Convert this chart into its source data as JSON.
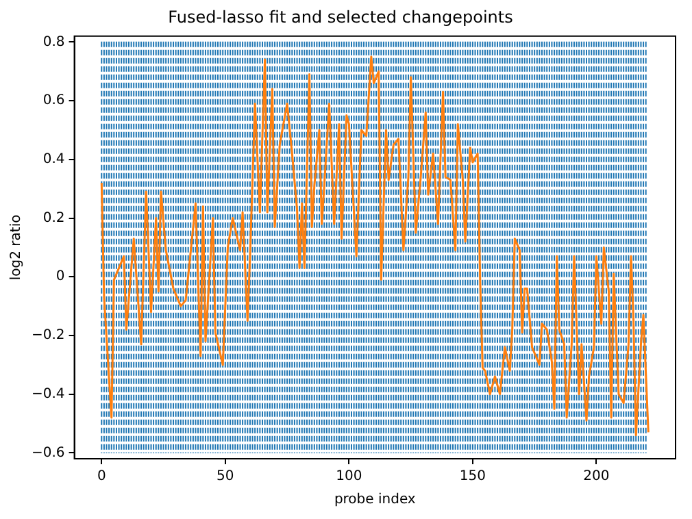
{
  "chart_data": {
    "type": "line",
    "title": "Fused-lasso fit and selected changepoints",
    "xlabel": "probe index",
    "ylabel": "log2 ratio",
    "xlim": [
      -11,
      232
    ],
    "xticks": [
      0,
      50,
      100,
      150,
      200
    ],
    "ylim": [
      -0.62,
      0.82
    ],
    "yticks": [
      -0.6,
      -0.4,
      -0.2,
      0.0,
      0.2,
      0.4,
      0.6,
      0.8
    ],
    "marker": "none",
    "line_style": "solid",
    "series": [
      {
        "color": "#ff7f0e",
        "x": [
          0,
          1,
          4,
          5,
          9,
          10,
          13,
          16,
          18,
          20,
          22,
          23,
          24,
          26,
          29,
          32,
          34,
          38,
          40,
          41,
          42,
          45,
          46,
          49,
          51,
          53,
          56,
          57,
          59,
          60,
          62,
          64,
          66,
          67,
          69,
          70,
          72,
          75,
          77,
          79,
          80,
          81,
          82,
          84,
          85,
          86,
          88,
          89,
          90,
          92,
          94,
          96,
          97,
          99,
          100,
          103,
          105,
          107,
          109,
          110,
          112,
          113,
          115,
          116,
          118,
          120,
          122,
          124,
          125,
          127,
          129,
          131,
          132,
          134,
          136,
          138,
          139,
          141,
          143,
          144,
          146,
          147,
          149,
          150,
          152,
          153,
          154,
          155,
          157,
          159,
          161,
          163,
          165,
          166,
          167,
          169,
          170,
          171,
          172,
          174,
          177,
          178,
          180,
          182,
          183,
          184,
          185,
          187,
          188,
          190,
          191,
          193,
          194,
          196,
          197,
          199,
          200,
          202,
          203,
          205,
          206,
          207,
          209,
          211,
          213,
          214,
          215,
          216,
          218,
          219,
          221
        ],
        "values": [
          0.32,
          -0.07,
          -0.48,
          -0.01,
          0.07,
          -0.18,
          0.13,
          -0.23,
          0.29,
          -0.12,
          0.2,
          -0.05,
          0.29,
          0.09,
          -0.04,
          -0.1,
          -0.08,
          0.25,
          -0.27,
          0.24,
          -0.22,
          0.2,
          -0.19,
          -0.3,
          0.1,
          0.2,
          0.09,
          0.22,
          -0.15,
          0.07,
          0.59,
          0.22,
          0.74,
          0.22,
          0.64,
          0.17,
          0.45,
          0.59,
          0.42,
          0.23,
          0.03,
          0.25,
          0.03,
          0.69,
          0.17,
          0.31,
          0.5,
          0.18,
          0.31,
          0.59,
          0.18,
          0.52,
          0.13,
          0.55,
          0.52,
          0.07,
          0.5,
          0.48,
          0.75,
          0.66,
          0.7,
          -0.01,
          0.5,
          0.33,
          0.45,
          0.47,
          0.09,
          0.34,
          0.68,
          0.15,
          0.34,
          0.56,
          0.28,
          0.42,
          0.18,
          0.63,
          0.34,
          0.33,
          0.09,
          0.52,
          0.33,
          0.12,
          0.44,
          0.39,
          0.42,
          -0.01,
          -0.31,
          -0.32,
          -0.4,
          -0.34,
          -0.4,
          -0.24,
          -0.32,
          -0.18,
          0.13,
          0.09,
          -0.19,
          -0.04,
          -0.04,
          -0.24,
          -0.3,
          -0.16,
          -0.18,
          -0.29,
          -0.45,
          0.07,
          -0.18,
          -0.23,
          -0.48,
          -0.23,
          0.07,
          -0.4,
          -0.23,
          -0.49,
          -0.34,
          -0.24,
          0.07,
          -0.16,
          0.1,
          -0.05,
          -0.48,
          0.01,
          -0.4,
          -0.43,
          -0.23,
          0.07,
          -0.15,
          -0.54,
          -0.23,
          -0.13,
          -0.53
        ]
      }
    ],
    "ref_lines": [
      {
        "axis": "x",
        "value": 0,
        "color": "#1f77b4",
        "line_style": "dashed"
      },
      {
        "axis": "x",
        "value": 1,
        "color": "#1f77b4",
        "line_style": "dashed"
      },
      {
        "axis": "x",
        "value": 2,
        "color": "#1f77b4",
        "line_style": "dashed"
      },
      {
        "axis": "x",
        "value": 3,
        "color": "#1f77b4",
        "line_style": "dashed"
      },
      {
        "axis": "x",
        "value": 4,
        "color": "#1f77b4",
        "line_style": "dashed"
      },
      {
        "axis": "x",
        "value": 5,
        "color": "#1f77b4",
        "line_style": "dashed"
      },
      {
        "axis": "x",
        "value": 6,
        "color": "#1f77b4",
        "line_style": "dashed"
      },
      {
        "axis": "x",
        "value": 7,
        "color": "#1f77b4",
        "line_style": "dashed"
      },
      {
        "axis": "x",
        "value": 8,
        "color": "#1f77b4",
        "line_style": "dashed"
      },
      {
        "axis": "x",
        "value": 9,
        "color": "#1f77b4",
        "line_style": "dashed"
      },
      {
        "axis": "x",
        "value": 10,
        "color": "#1f77b4",
        "line_style": "dashed"
      },
      {
        "axis": "x",
        "value": 11,
        "color": "#1f77b4",
        "line_style": "dashed"
      },
      {
        "axis": "x",
        "value": 12,
        "color": "#1f77b4",
        "line_style": "dashed"
      },
      {
        "axis": "x",
        "value": 13,
        "color": "#1f77b4",
        "line_style": "dashed"
      },
      {
        "axis": "x",
        "value": 14,
        "color": "#1f77b4",
        "line_style": "dashed"
      },
      {
        "axis": "x",
        "value": 15,
        "color": "#1f77b4",
        "line_style": "dashed"
      },
      {
        "axis": "x",
        "value": 16,
        "color": "#1f77b4",
        "line_style": "dashed"
      },
      {
        "axis": "x",
        "value": 17,
        "color": "#1f77b4",
        "line_style": "dashed"
      },
      {
        "axis": "x",
        "value": 18,
        "color": "#1f77b4",
        "line_style": "dashed"
      },
      {
        "axis": "x",
        "value": 19,
        "color": "#1f77b4",
        "line_style": "dashed"
      },
      {
        "axis": "x",
        "value": 20,
        "color": "#1f77b4",
        "line_style": "dashed"
      },
      {
        "axis": "x",
        "value": 21,
        "color": "#1f77b4",
        "line_style": "dashed"
      },
      {
        "axis": "x",
        "value": 22,
        "color": "#1f77b4",
        "line_style": "dashed"
      },
      {
        "axis": "x",
        "value": 23,
        "color": "#1f77b4",
        "line_style": "dashed"
      },
      {
        "axis": "x",
        "value": 24,
        "color": "#1f77b4",
        "line_style": "dashed"
      },
      {
        "axis": "x",
        "value": 25,
        "color": "#1f77b4",
        "line_style": "dashed"
      },
      {
        "axis": "x",
        "value": 26,
        "color": "#1f77b4",
        "line_style": "dashed"
      },
      {
        "axis": "x",
        "value": 27,
        "color": "#1f77b4",
        "line_style": "dashed"
      },
      {
        "axis": "x",
        "value": 28,
        "color": "#1f77b4",
        "line_style": "dashed"
      },
      {
        "axis": "x",
        "value": 29,
        "color": "#1f77b4",
        "line_style": "dashed"
      },
      {
        "axis": "x",
        "value": 30,
        "color": "#1f77b4",
        "line_style": "dashed"
      },
      {
        "axis": "x",
        "value": 31,
        "color": "#1f77b4",
        "line_style": "dashed"
      },
      {
        "axis": "x",
        "value": 32,
        "color": "#1f77b4",
        "line_style": "dashed"
      },
      {
        "axis": "x",
        "value": 33,
        "color": "#1f77b4",
        "line_style": "dashed"
      },
      {
        "axis": "x",
        "value": 34,
        "color": "#1f77b4",
        "line_style": "dashed"
      },
      {
        "axis": "x",
        "value": 35,
        "color": "#1f77b4",
        "line_style": "dashed"
      },
      {
        "axis": "x",
        "value": 36,
        "color": "#1f77b4",
        "line_style": "dashed"
      },
      {
        "axis": "x",
        "value": 37,
        "color": "#1f77b4",
        "line_style": "dashed"
      },
      {
        "axis": "x",
        "value": 38,
        "color": "#1f77b4",
        "line_style": "dashed"
      },
      {
        "axis": "x",
        "value": 39,
        "color": "#1f77b4",
        "line_style": "dashed"
      },
      {
        "axis": "x",
        "value": 40,
        "color": "#1f77b4",
        "line_style": "dashed"
      },
      {
        "axis": "x",
        "value": 41,
        "color": "#1f77b4",
        "line_style": "dashed"
      },
      {
        "axis": "x",
        "value": 42,
        "color": "#1f77b4",
        "line_style": "dashed"
      },
      {
        "axis": "x",
        "value": 43,
        "color": "#1f77b4",
        "line_style": "dashed"
      },
      {
        "axis": "x",
        "value": 44,
        "color": "#1f77b4",
        "line_style": "dashed"
      },
      {
        "axis": "x",
        "value": 45,
        "color": "#1f77b4",
        "line_style": "dashed"
      },
      {
        "axis": "x",
        "value": 46,
        "color": "#1f77b4",
        "line_style": "dashed"
      },
      {
        "axis": "x",
        "value": 47,
        "color": "#1f77b4",
        "line_style": "dashed"
      },
      {
        "axis": "x",
        "value": 48,
        "color": "#1f77b4",
        "line_style": "dashed"
      },
      {
        "axis": "x",
        "value": 49,
        "color": "#1f77b4",
        "line_style": "dashed"
      },
      {
        "axis": "x",
        "value": 50,
        "color": "#1f77b4",
        "line_style": "dashed"
      },
      {
        "axis": "x",
        "value": 51,
        "color": "#1f77b4",
        "line_style": "dashed"
      },
      {
        "axis": "x",
        "value": 52,
        "color": "#1f77b4",
        "line_style": "dashed"
      },
      {
        "axis": "x",
        "value": 53,
        "color": "#1f77b4",
        "line_style": "dashed"
      },
      {
        "axis": "x",
        "value": 54,
        "color": "#1f77b4",
        "line_style": "dashed"
      },
      {
        "axis": "x",
        "value": 55,
        "color": "#1f77b4",
        "line_style": "dashed"
      },
      {
        "axis": "x",
        "value": 56,
        "color": "#1f77b4",
        "line_style": "dashed"
      },
      {
        "axis": "x",
        "value": 57,
        "color": "#1f77b4",
        "line_style": "dashed"
      },
      {
        "axis": "x",
        "value": 58,
        "color": "#1f77b4",
        "line_style": "dashed"
      },
      {
        "axis": "x",
        "value": 59,
        "color": "#1f77b4",
        "line_style": "dashed"
      },
      {
        "axis": "x",
        "value": 60,
        "color": "#1f77b4",
        "line_style": "dashed"
      },
      {
        "axis": "x",
        "value": 61,
        "color": "#1f77b4",
        "line_style": "dashed"
      },
      {
        "axis": "x",
        "value": 62,
        "color": "#1f77b4",
        "line_style": "dashed"
      },
      {
        "axis": "x",
        "value": 63,
        "color": "#1f77b4",
        "line_style": "dashed"
      },
      {
        "axis": "x",
        "value": 64,
        "color": "#1f77b4",
        "line_style": "dashed"
      },
      {
        "axis": "x",
        "value": 65,
        "color": "#1f77b4",
        "line_style": "dashed"
      },
      {
        "axis": "x",
        "value": 66,
        "color": "#1f77b4",
        "line_style": "dashed"
      },
      {
        "axis": "x",
        "value": 67,
        "color": "#1f77b4",
        "line_style": "dashed"
      },
      {
        "axis": "x",
        "value": 68,
        "color": "#1f77b4",
        "line_style": "dashed"
      },
      {
        "axis": "x",
        "value": 69,
        "color": "#1f77b4",
        "line_style": "dashed"
      },
      {
        "axis": "x",
        "value": 70,
        "color": "#1f77b4",
        "line_style": "dashed"
      },
      {
        "axis": "x",
        "value": 71,
        "color": "#1f77b4",
        "line_style": "dashed"
      },
      {
        "axis": "x",
        "value": 72,
        "color": "#1f77b4",
        "line_style": "dashed"
      },
      {
        "axis": "x",
        "value": 73,
        "color": "#1f77b4",
        "line_style": "dashed"
      },
      {
        "axis": "x",
        "value": 74,
        "color": "#1f77b4",
        "line_style": "dashed"
      },
      {
        "axis": "x",
        "value": 75,
        "color": "#1f77b4",
        "line_style": "dashed"
      },
      {
        "axis": "x",
        "value": 76,
        "color": "#1f77b4",
        "line_style": "dashed"
      },
      {
        "axis": "x",
        "value": 77,
        "color": "#1f77b4",
        "line_style": "dashed"
      },
      {
        "axis": "x",
        "value": 78,
        "color": "#1f77b4",
        "line_style": "dashed"
      },
      {
        "axis": "x",
        "value": 79,
        "color": "#1f77b4",
        "line_style": "dashed"
      },
      {
        "axis": "x",
        "value": 80,
        "color": "#1f77b4",
        "line_style": "dashed"
      },
      {
        "axis": "x",
        "value": 81,
        "color": "#1f77b4",
        "line_style": "dashed"
      },
      {
        "axis": "x",
        "value": 82,
        "color": "#1f77b4",
        "line_style": "dashed"
      },
      {
        "axis": "x",
        "value": 83,
        "color": "#1f77b4",
        "line_style": "dashed"
      },
      {
        "axis": "x",
        "value": 84,
        "color": "#1f77b4",
        "line_style": "dashed"
      },
      {
        "axis": "x",
        "value": 85,
        "color": "#1f77b4",
        "line_style": "dashed"
      },
      {
        "axis": "x",
        "value": 86,
        "color": "#1f77b4",
        "line_style": "dashed"
      },
      {
        "axis": "x",
        "value": 87,
        "color": "#1f77b4",
        "line_style": "dashed"
      },
      {
        "axis": "x",
        "value": 88,
        "color": "#1f77b4",
        "line_style": "dashed"
      },
      {
        "axis": "x",
        "value": 89,
        "color": "#1f77b4",
        "line_style": "dashed"
      },
      {
        "axis": "x",
        "value": 90,
        "color": "#1f77b4",
        "line_style": "dashed"
      },
      {
        "axis": "x",
        "value": 91,
        "color": "#1f77b4",
        "line_style": "dashed"
      },
      {
        "axis": "x",
        "value": 92,
        "color": "#1f77b4",
        "line_style": "dashed"
      },
      {
        "axis": "x",
        "value": 93,
        "color": "#1f77b4",
        "line_style": "dashed"
      },
      {
        "axis": "x",
        "value": 94,
        "color": "#1f77b4",
        "line_style": "dashed"
      },
      {
        "axis": "x",
        "value": 95,
        "color": "#1f77b4",
        "line_style": "dashed"
      },
      {
        "axis": "x",
        "value": 96,
        "color": "#1f77b4",
        "line_style": "dashed"
      },
      {
        "axis": "x",
        "value": 97,
        "color": "#1f77b4",
        "line_style": "dashed"
      },
      {
        "axis": "x",
        "value": 98,
        "color": "#1f77b4",
        "line_style": "dashed"
      },
      {
        "axis": "x",
        "value": 99,
        "color": "#1f77b4",
        "line_style": "dashed"
      },
      {
        "axis": "x",
        "value": 100,
        "color": "#1f77b4",
        "line_style": "dashed"
      },
      {
        "axis": "x",
        "value": 101,
        "color": "#1f77b4",
        "line_style": "dashed"
      },
      {
        "axis": "x",
        "value": 102,
        "color": "#1f77b4",
        "line_style": "dashed"
      },
      {
        "axis": "x",
        "value": 103,
        "color": "#1f77b4",
        "line_style": "dashed"
      },
      {
        "axis": "x",
        "value": 104,
        "color": "#1f77b4",
        "line_style": "dashed"
      },
      {
        "axis": "x",
        "value": 105,
        "color": "#1f77b4",
        "line_style": "dashed"
      },
      {
        "axis": "x",
        "value": 106,
        "color": "#1f77b4",
        "line_style": "dashed"
      },
      {
        "axis": "x",
        "value": 107,
        "color": "#1f77b4",
        "line_style": "dashed"
      },
      {
        "axis": "x",
        "value": 108,
        "color": "#1f77b4",
        "line_style": "dashed"
      },
      {
        "axis": "x",
        "value": 109,
        "color": "#1f77b4",
        "line_style": "dashed"
      },
      {
        "axis": "x",
        "value": 110,
        "color": "#1f77b4",
        "line_style": "dashed"
      },
      {
        "axis": "x",
        "value": 111,
        "color": "#1f77b4",
        "line_style": "dashed"
      },
      {
        "axis": "x",
        "value": 112,
        "color": "#1f77b4",
        "line_style": "dashed"
      },
      {
        "axis": "x",
        "value": 113,
        "color": "#1f77b4",
        "line_style": "dashed"
      },
      {
        "axis": "x",
        "value": 114,
        "color": "#1f77b4",
        "line_style": "dashed"
      },
      {
        "axis": "x",
        "value": 115,
        "color": "#1f77b4",
        "line_style": "dashed"
      },
      {
        "axis": "x",
        "value": 116,
        "color": "#1f77b4",
        "line_style": "dashed"
      },
      {
        "axis": "x",
        "value": 117,
        "color": "#1f77b4",
        "line_style": "dashed"
      },
      {
        "axis": "x",
        "value": 118,
        "color": "#1f77b4",
        "line_style": "dashed"
      },
      {
        "axis": "x",
        "value": 119,
        "color": "#1f77b4",
        "line_style": "dashed"
      },
      {
        "axis": "x",
        "value": 120,
        "color": "#1f77b4",
        "line_style": "dashed"
      },
      {
        "axis": "x",
        "value": 121,
        "color": "#1f77b4",
        "line_style": "dashed"
      },
      {
        "axis": "x",
        "value": 122,
        "color": "#1f77b4",
        "line_style": "dashed"
      },
      {
        "axis": "x",
        "value": 123,
        "color": "#1f77b4",
        "line_style": "dashed"
      },
      {
        "axis": "x",
        "value": 124,
        "color": "#1f77b4",
        "line_style": "dashed"
      },
      {
        "axis": "x",
        "value": 125,
        "color": "#1f77b4",
        "line_style": "dashed"
      },
      {
        "axis": "x",
        "value": 126,
        "color": "#1f77b4",
        "line_style": "dashed"
      },
      {
        "axis": "x",
        "value": 127,
        "color": "#1f77b4",
        "line_style": "dashed"
      },
      {
        "axis": "x",
        "value": 128,
        "color": "#1f77b4",
        "line_style": "dashed"
      },
      {
        "axis": "x",
        "value": 129,
        "color": "#1f77b4",
        "line_style": "dashed"
      },
      {
        "axis": "x",
        "value": 130,
        "color": "#1f77b4",
        "line_style": "dashed"
      },
      {
        "axis": "x",
        "value": 131,
        "color": "#1f77b4",
        "line_style": "dashed"
      },
      {
        "axis": "x",
        "value": 132,
        "color": "#1f77b4",
        "line_style": "dashed"
      },
      {
        "axis": "x",
        "value": 133,
        "color": "#1f77b4",
        "line_style": "dashed"
      },
      {
        "axis": "x",
        "value": 134,
        "color": "#1f77b4",
        "line_style": "dashed"
      },
      {
        "axis": "x",
        "value": 135,
        "color": "#1f77b4",
        "line_style": "dashed"
      },
      {
        "axis": "x",
        "value": 136,
        "color": "#1f77b4",
        "line_style": "dashed"
      },
      {
        "axis": "x",
        "value": 137,
        "color": "#1f77b4",
        "line_style": "dashed"
      },
      {
        "axis": "x",
        "value": 138,
        "color": "#1f77b4",
        "line_style": "dashed"
      },
      {
        "axis": "x",
        "value": 139,
        "color": "#1f77b4",
        "line_style": "dashed"
      },
      {
        "axis": "x",
        "value": 140,
        "color": "#1f77b4",
        "line_style": "dashed"
      },
      {
        "axis": "x",
        "value": 141,
        "color": "#1f77b4",
        "line_style": "dashed"
      },
      {
        "axis": "x",
        "value": 142,
        "color": "#1f77b4",
        "line_style": "dashed"
      },
      {
        "axis": "x",
        "value": 143,
        "color": "#1f77b4",
        "line_style": "dashed"
      },
      {
        "axis": "x",
        "value": 144,
        "color": "#1f77b4",
        "line_style": "dashed"
      },
      {
        "axis": "x",
        "value": 145,
        "color": "#1f77b4",
        "line_style": "dashed"
      },
      {
        "axis": "x",
        "value": 146,
        "color": "#1f77b4",
        "line_style": "dashed"
      },
      {
        "axis": "x",
        "value": 147,
        "color": "#1f77b4",
        "line_style": "dashed"
      },
      {
        "axis": "x",
        "value": 148,
        "color": "#1f77b4",
        "line_style": "dashed"
      },
      {
        "axis": "x",
        "value": 149,
        "color": "#1f77b4",
        "line_style": "dashed"
      },
      {
        "axis": "x",
        "value": 150,
        "color": "#1f77b4",
        "line_style": "dashed"
      },
      {
        "axis": "x",
        "value": 151,
        "color": "#1f77b4",
        "line_style": "dashed"
      },
      {
        "axis": "x",
        "value": 152,
        "color": "#1f77b4",
        "line_style": "dashed"
      },
      {
        "axis": "x",
        "value": 153,
        "color": "#1f77b4",
        "line_style": "dashed"
      },
      {
        "axis": "x",
        "value": 154,
        "color": "#1f77b4",
        "line_style": "dashed"
      },
      {
        "axis": "x",
        "value": 155,
        "color": "#1f77b4",
        "line_style": "dashed"
      },
      {
        "axis": "x",
        "value": 156,
        "color": "#1f77b4",
        "line_style": "dashed"
      },
      {
        "axis": "x",
        "value": 157,
        "color": "#1f77b4",
        "line_style": "dashed"
      },
      {
        "axis": "x",
        "value": 158,
        "color": "#1f77b4",
        "line_style": "dashed"
      },
      {
        "axis": "x",
        "value": 159,
        "color": "#1f77b4",
        "line_style": "dashed"
      },
      {
        "axis": "x",
        "value": 160,
        "color": "#1f77b4",
        "line_style": "dashed"
      },
      {
        "axis": "x",
        "value": 161,
        "color": "#1f77b4",
        "line_style": "dashed"
      },
      {
        "axis": "x",
        "value": 162,
        "color": "#1f77b4",
        "line_style": "dashed"
      },
      {
        "axis": "x",
        "value": 163,
        "color": "#1f77b4",
        "line_style": "dashed"
      },
      {
        "axis": "x",
        "value": 164,
        "color": "#1f77b4",
        "line_style": "dashed"
      },
      {
        "axis": "x",
        "value": 165,
        "color": "#1f77b4",
        "line_style": "dashed"
      },
      {
        "axis": "x",
        "value": 166,
        "color": "#1f77b4",
        "line_style": "dashed"
      },
      {
        "axis": "x",
        "value": 167,
        "color": "#1f77b4",
        "line_style": "dashed"
      },
      {
        "axis": "x",
        "value": 168,
        "color": "#1f77b4",
        "line_style": "dashed"
      },
      {
        "axis": "x",
        "value": 169,
        "color": "#1f77b4",
        "line_style": "dashed"
      },
      {
        "axis": "x",
        "value": 170,
        "color": "#1f77b4",
        "line_style": "dashed"
      },
      {
        "axis": "x",
        "value": 171,
        "color": "#1f77b4",
        "line_style": "dashed"
      },
      {
        "axis": "x",
        "value": 172,
        "color": "#1f77b4",
        "line_style": "dashed"
      },
      {
        "axis": "x",
        "value": 173,
        "color": "#1f77b4",
        "line_style": "dashed"
      },
      {
        "axis": "x",
        "value": 174,
        "color": "#1f77b4",
        "line_style": "dashed"
      },
      {
        "axis": "x",
        "value": 175,
        "color": "#1f77b4",
        "line_style": "dashed"
      },
      {
        "axis": "x",
        "value": 176,
        "color": "#1f77b4",
        "line_style": "dashed"
      },
      {
        "axis": "x",
        "value": 177,
        "color": "#1f77b4",
        "line_style": "dashed"
      },
      {
        "axis": "x",
        "value": 178,
        "color": "#1f77b4",
        "line_style": "dashed"
      },
      {
        "axis": "x",
        "value": 179,
        "color": "#1f77b4",
        "line_style": "dashed"
      },
      {
        "axis": "x",
        "value": 180,
        "color": "#1f77b4",
        "line_style": "dashed"
      },
      {
        "axis": "x",
        "value": 181,
        "color": "#1f77b4",
        "line_style": "dashed"
      },
      {
        "axis": "x",
        "value": 182,
        "color": "#1f77b4",
        "line_style": "dashed"
      },
      {
        "axis": "x",
        "value": 183,
        "color": "#1f77b4",
        "line_style": "dashed"
      },
      {
        "axis": "x",
        "value": 184,
        "color": "#1f77b4",
        "line_style": "dashed"
      },
      {
        "axis": "x",
        "value": 185,
        "color": "#1f77b4",
        "line_style": "dashed"
      },
      {
        "axis": "x",
        "value": 186,
        "color": "#1f77b4",
        "line_style": "dashed"
      },
      {
        "axis": "x",
        "value": 187,
        "color": "#1f77b4",
        "line_style": "dashed"
      },
      {
        "axis": "x",
        "value": 188,
        "color": "#1f77b4",
        "line_style": "dashed"
      },
      {
        "axis": "x",
        "value": 189,
        "color": "#1f77b4",
        "line_style": "dashed"
      },
      {
        "axis": "x",
        "value": 190,
        "color": "#1f77b4",
        "line_style": "dashed"
      },
      {
        "axis": "x",
        "value": 191,
        "color": "#1f77b4",
        "line_style": "dashed"
      },
      {
        "axis": "x",
        "value": 192,
        "color": "#1f77b4",
        "line_style": "dashed"
      },
      {
        "axis": "x",
        "value": 193,
        "color": "#1f77b4",
        "line_style": "dashed"
      },
      {
        "axis": "x",
        "value": 194,
        "color": "#1f77b4",
        "line_style": "dashed"
      },
      {
        "axis": "x",
        "value": 195,
        "color": "#1f77b4",
        "line_style": "dashed"
      },
      {
        "axis": "x",
        "value": 196,
        "color": "#1f77b4",
        "line_style": "dashed"
      },
      {
        "axis": "x",
        "value": 197,
        "color": "#1f77b4",
        "line_style": "dashed"
      },
      {
        "axis": "x",
        "value": 198,
        "color": "#1f77b4",
        "line_style": "dashed"
      },
      {
        "axis": "x",
        "value": 199,
        "color": "#1f77b4",
        "line_style": "dashed"
      },
      {
        "axis": "x",
        "value": 200,
        "color": "#1f77b4",
        "line_style": "dashed"
      },
      {
        "axis": "x",
        "value": 201,
        "color": "#1f77b4",
        "line_style": "dashed"
      },
      {
        "axis": "x",
        "value": 202,
        "color": "#1f77b4",
        "line_style": "dashed"
      },
      {
        "axis": "x",
        "value": 203,
        "color": "#1f77b4",
        "line_style": "dashed"
      },
      {
        "axis": "x",
        "value": 204,
        "color": "#1f77b4",
        "line_style": "dashed"
      },
      {
        "axis": "x",
        "value": 205,
        "color": "#1f77b4",
        "line_style": "dashed"
      },
      {
        "axis": "x",
        "value": 206,
        "color": "#1f77b4",
        "line_style": "dashed"
      },
      {
        "axis": "x",
        "value": 207,
        "color": "#1f77b4",
        "line_style": "dashed"
      },
      {
        "axis": "x",
        "value": 208,
        "color": "#1f77b4",
        "line_style": "dashed"
      },
      {
        "axis": "x",
        "value": 209,
        "color": "#1f77b4",
        "line_style": "dashed"
      },
      {
        "axis": "x",
        "value": 210,
        "color": "#1f77b4",
        "line_style": "dashed"
      },
      {
        "axis": "x",
        "value": 211,
        "color": "#1f77b4",
        "line_style": "dashed"
      },
      {
        "axis": "x",
        "value": 212,
        "color": "#1f77b4",
        "line_style": "dashed"
      },
      {
        "axis": "x",
        "value": 213,
        "color": "#1f77b4",
        "line_style": "dashed"
      },
      {
        "axis": "x",
        "value": 214,
        "color": "#1f77b4",
        "line_style": "dashed"
      },
      {
        "axis": "x",
        "value": 215,
        "color": "#1f77b4",
        "line_style": "dashed"
      },
      {
        "axis": "x",
        "value": 216,
        "color": "#1f77b4",
        "line_style": "dashed"
      },
      {
        "axis": "x",
        "value": 217,
        "color": "#1f77b4",
        "line_style": "dashed"
      },
      {
        "axis": "x",
        "value": 218,
        "color": "#1f77b4",
        "line_style": "dashed"
      },
      {
        "axis": "x",
        "value": 219,
        "color": "#1f77b4",
        "line_style": "dashed"
      },
      {
        "axis": "x",
        "value": 220,
        "color": "#1f77b4",
        "line_style": "dashed"
      }
    ]
  }
}
